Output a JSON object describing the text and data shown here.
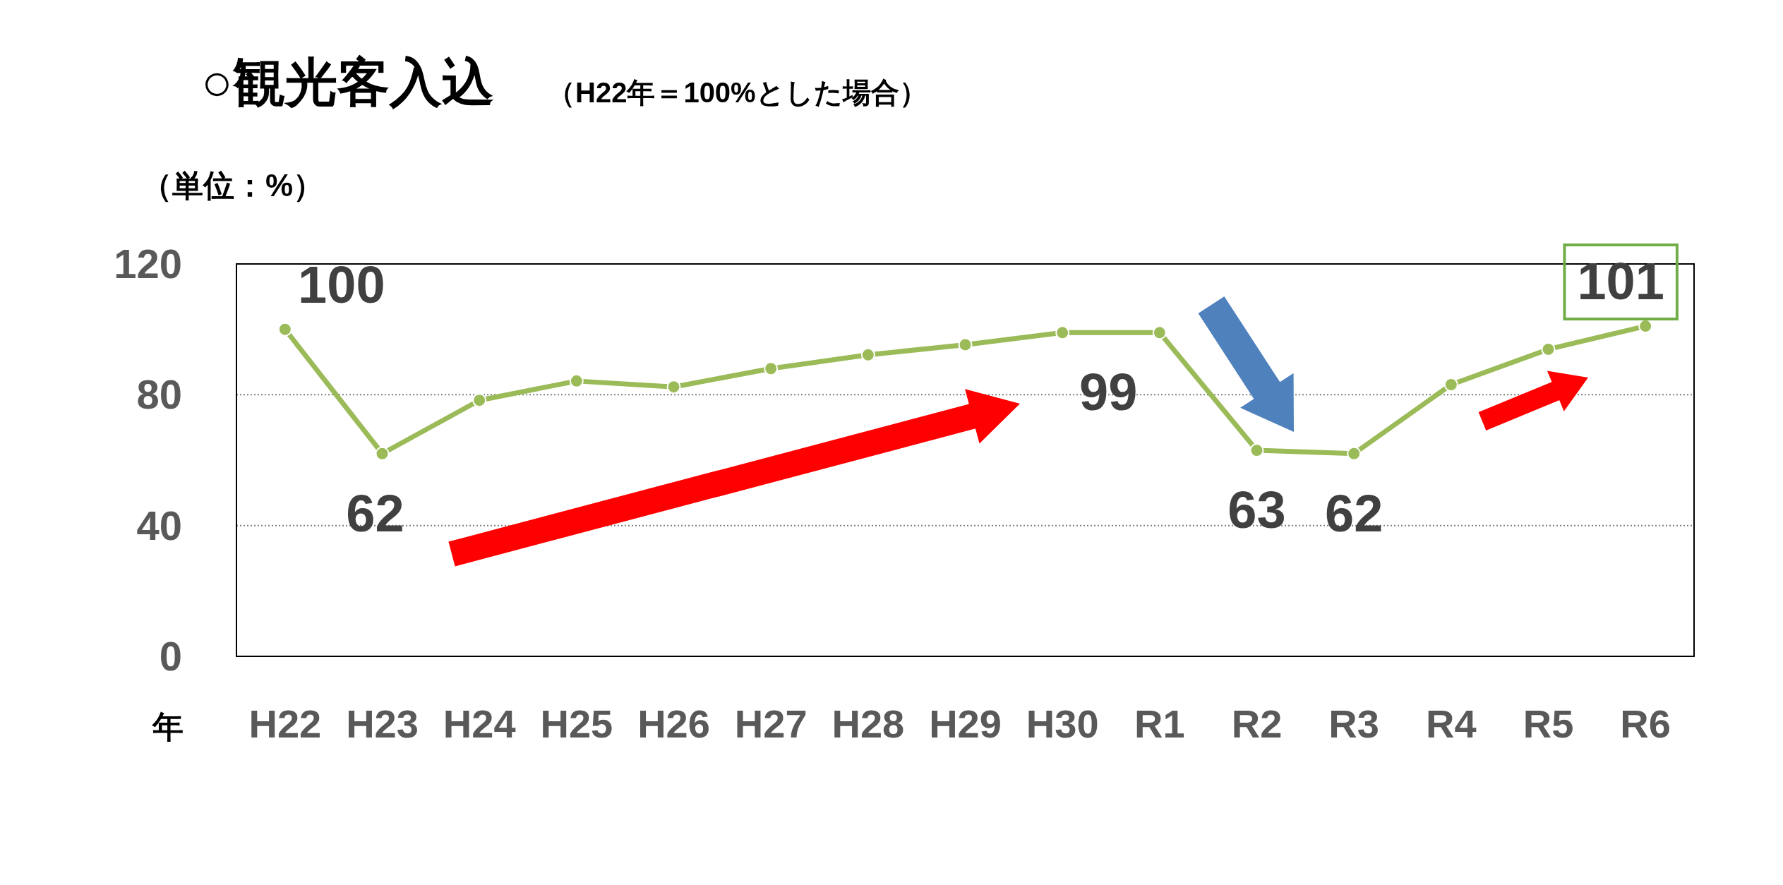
{
  "chart_data": {
    "type": "line",
    "title": "○観光客入込",
    "subtitle": "（H22年＝100%とした場合）",
    "ylabel": "（単位：%）",
    "xlabel": "年",
    "categories": [
      "H22",
      "H23",
      "H24",
      "H25",
      "H26",
      "H27",
      "H28",
      "H29",
      "H30",
      "R1",
      "R2",
      "R3",
      "R4",
      "R5",
      "R6"
    ],
    "series": [
      {
        "color": "#9bbb59",
        "values": [
          100,
          62,
          78.3,
          84.2,
          82.4,
          88,
          92.2,
          95.3,
          99,
          99,
          63,
          62,
          83.1,
          93.9,
          101
        ],
        "value_labels": [
          "100",
          "62",
          null,
          null,
          null,
          null,
          null,
          null,
          "99",
          null,
          "63",
          "62",
          null,
          null,
          "101"
        ]
      }
    ],
    "ylim": [
      0,
      120
    ],
    "yticks": [
      0,
      40,
      80,
      120
    ],
    "grid": "y",
    "marker": "circle",
    "line_style": "solid"
  }
}
